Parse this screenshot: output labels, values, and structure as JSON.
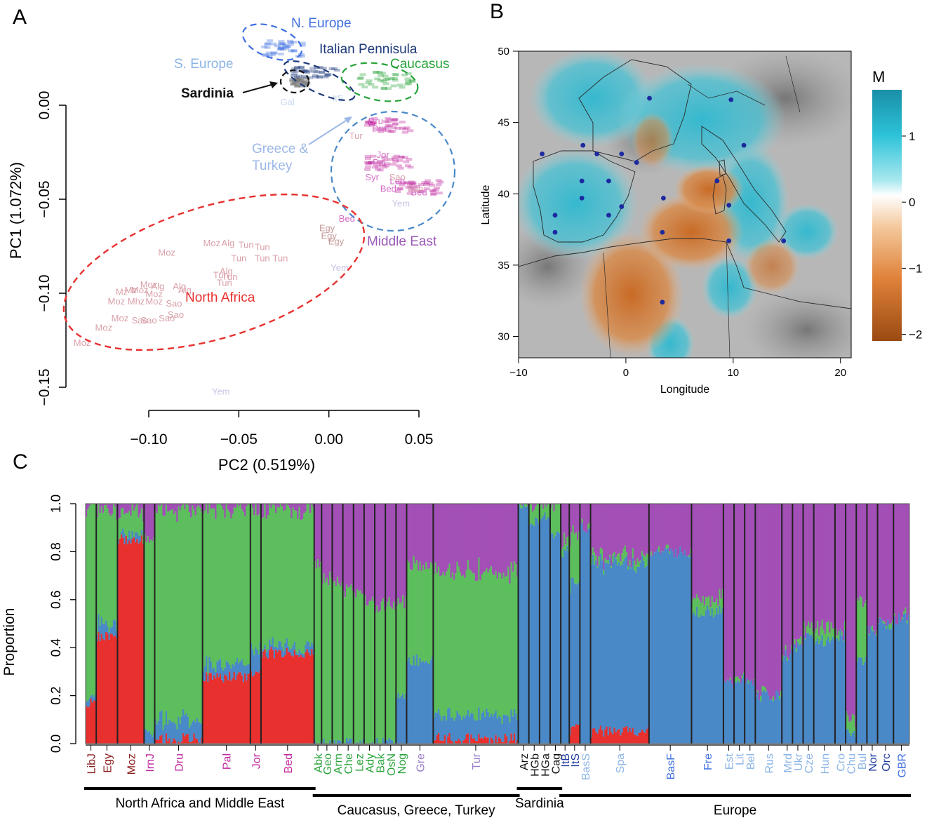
{
  "panel_labels": {
    "a": "A",
    "b": "B",
    "c": "C"
  },
  "colors": {
    "north_africa": "#e8302e",
    "blue_comp": "#4a89c8",
    "green_comp": "#5cbe5c",
    "purple_comp": "#a24fb6",
    "n_europe": "#3f6fe0",
    "italy": "#1e3a7a",
    "caucasus": "#27a33a",
    "middle_east": "#9b59b6",
    "s_europe": "#8ab4e6",
    "greece": "#9db8e6",
    "red_label": "#e8302e",
    "dark_red": "#8b1f1f",
    "magenta": "#c0269e"
  },
  "chart_data": [
    {
      "type": "scatter",
      "panel": "A",
      "xlabel": "PC2 (0.519%)",
      "ylabel": "PC1 (1.072%)",
      "xlim": [
        -0.14,
        0.05
      ],
      "ylim": [
        -0.15,
        0.02
      ],
      "xticks": [
        "−0.10",
        "−0.05",
        "0.00",
        "0.05"
      ],
      "yticks": [
        "0.00",
        "−0.05",
        "−0.10",
        "−0.15"
      ],
      "group_labels": [
        "N. Europe",
        "Italian Pennisula",
        "S. Europe",
        "Caucasus",
        "Sardinia",
        "Greece & Turkey",
        "Middle East",
        "North Africa"
      ],
      "point_labels": [
        {
          "t": "Moz",
          "x": -0.065,
          "y": -0.075
        },
        {
          "t": "Alg",
          "x": -0.056,
          "y": -0.075
        },
        {
          "t": "Tun",
          "x": -0.046,
          "y": -0.076
        },
        {
          "t": "Tun",
          "x": -0.037,
          "y": -0.077
        },
        {
          "t": "Moz",
          "x": -0.09,
          "y": -0.08
        },
        {
          "t": "Tun",
          "x": -0.05,
          "y": -0.083
        },
        {
          "t": "Tun",
          "x": -0.037,
          "y": -0.083
        },
        {
          "t": "Tun",
          "x": -0.027,
          "y": -0.083
        },
        {
          "t": "Alg",
          "x": -0.057,
          "y": -0.09
        },
        {
          "t": "Tun",
          "x": -0.06,
          "y": -0.092
        },
        {
          "t": "Tun",
          "x": -0.055,
          "y": -0.093
        },
        {
          "t": "Tun",
          "x": -0.058,
          "y": -0.096
        },
        {
          "t": "Moz",
          "x": -0.1,
          "y": -0.097
        },
        {
          "t": "Alg",
          "x": -0.095,
          "y": -0.098
        },
        {
          "t": "Alg",
          "x": -0.083,
          "y": -0.098
        },
        {
          "t": "Alg",
          "x": -0.08,
          "y": -0.1
        },
        {
          "t": "Mz",
          "x": -0.11,
          "y": -0.1
        },
        {
          "t": "Mz",
          "x": -0.115,
          "y": -0.101
        },
        {
          "t": "Moz",
          "x": -0.105,
          "y": -0.1
        },
        {
          "t": "Moz",
          "x": -0.097,
          "y": -0.102
        },
        {
          "t": "Moz",
          "x": -0.118,
          "y": -0.106
        },
        {
          "t": "Mhz",
          "x": -0.107,
          "y": -0.106
        },
        {
          "t": "Moz",
          "x": -0.097,
          "y": -0.106
        },
        {
          "t": "Sao",
          "x": -0.086,
          "y": -0.107
        },
        {
          "t": "Moz",
          "x": -0.116,
          "y": -0.115
        },
        {
          "t": "Sao",
          "x": -0.105,
          "y": -0.116
        },
        {
          "t": "Sao",
          "x": -0.1,
          "y": -0.116
        },
        {
          "t": "Sao",
          "x": -0.09,
          "y": -0.115
        },
        {
          "t": "Sao",
          "x": -0.085,
          "y": -0.113
        },
        {
          "t": "Moz",
          "x": -0.125,
          "y": -0.12
        },
        {
          "t": "Moz",
          "x": -0.137,
          "y": -0.128
        },
        {
          "t": "Yem",
          "x": 0.006,
          "y": -0.088
        },
        {
          "t": "Yem",
          "x": 0.04,
          "y": -0.054
        },
        {
          "t": "Yem",
          "x": -0.06,
          "y": -0.154
        },
        {
          "t": "Egy",
          "x": -0.001,
          "y": -0.067
        },
        {
          "t": "Egy",
          "x": 0.0,
          "y": -0.071
        },
        {
          "t": "Egy",
          "x": 0.004,
          "y": -0.074
        },
        {
          "t": "Bed",
          "x": 0.01,
          "y": -0.062
        },
        {
          "t": "Bed",
          "x": 0.033,
          "y": -0.046
        },
        {
          "t": "Bed",
          "x": 0.05,
          "y": -0.048
        },
        {
          "t": "Sao",
          "x": 0.038,
          "y": -0.04
        },
        {
          "t": "Sao",
          "x": 0.048,
          "y": -0.046
        },
        {
          "t": "Pal",
          "x": 0.028,
          "y": -0.032
        },
        {
          "t": "Jor",
          "x": 0.03,
          "y": -0.028
        },
        {
          "t": "Dru",
          "x": 0.026,
          "y": -0.01
        },
        {
          "t": "Dru",
          "x": 0.028,
          "y": -0.014
        },
        {
          "t": "Gal",
          "x": -0.023,
          "y": -0.0
        },
        {
          "t": "Tur",
          "x": 0.015,
          "y": -0.018
        },
        {
          "t": "Syr",
          "x": 0.024,
          "y": -0.04
        },
        {
          "t": "Leb",
          "x": 0.038,
          "y": -0.042
        },
        {
          "t": "ItS",
          "x": 0.005,
          "y": 0.002
        }
      ],
      "group_clusters": [
        {
          "group": "n_europe",
          "x": -0.027,
          "y": 0.031
        },
        {
          "group": "italy",
          "x": -0.008,
          "y": 0.018
        },
        {
          "group": "caucasus",
          "x": 0.03,
          "y": 0.014
        },
        {
          "group": "sardinia",
          "x": -0.018,
          "y": 0.013
        },
        {
          "group": "middle_east",
          "x": 0.032,
          "y": -0.01
        },
        {
          "group": "middle_east",
          "x": 0.032,
          "y": -0.03
        },
        {
          "group": "middle_east",
          "x": 0.048,
          "y": -0.043
        }
      ]
    },
    {
      "type": "heatmap",
      "panel": "B",
      "title": "M",
      "xlabel": "Longitude",
      "ylabel": "Latitude",
      "xticks": [
        "−10",
        "0",
        "10",
        "20"
      ],
      "yticks": [
        "30",
        "35",
        "40",
        "45",
        "50"
      ],
      "xlim": [
        -10,
        21
      ],
      "ylim": [
        28.5,
        50
      ],
      "colorbar_ticks": [
        "1",
        "0",
        "−1",
        "−2"
      ],
      "colorbar_range": [
        -2.1,
        1.7
      ],
      "sample_sites": [
        {
          "lon": 2.2,
          "lat": 46.7
        },
        {
          "lon": 9.8,
          "lat": 46.6
        },
        {
          "lon": -4.0,
          "lat": 43.4
        },
        {
          "lon": 11.0,
          "lat": 43.4
        },
        {
          "lon": -7.8,
          "lat": 42.8
        },
        {
          "lon": -2.7,
          "lat": 42.8
        },
        {
          "lon": -0.4,
          "lat": 42.8
        },
        {
          "lon": 1.0,
          "lat": 42.2
        },
        {
          "lon": -4.1,
          "lat": 40.9
        },
        {
          "lon": -1.6,
          "lat": 40.9
        },
        {
          "lon": 8.5,
          "lat": 40.9
        },
        {
          "lon": -4.1,
          "lat": 39.7
        },
        {
          "lon": 3.5,
          "lat": 39.7
        },
        {
          "lon": -0.4,
          "lat": 39.1
        },
        {
          "lon": 9.6,
          "lat": 39.2
        },
        {
          "lon": -6.6,
          "lat": 38.5
        },
        {
          "lon": -1.6,
          "lat": 38.5
        },
        {
          "lon": -6.6,
          "lat": 37.3
        },
        {
          "lon": 3.4,
          "lat": 37.3
        },
        {
          "lon": 9.6,
          "lat": 36.7
        },
        {
          "lon": 14.7,
          "lat": 36.7
        },
        {
          "lon": 3.4,
          "lat": 32.4
        }
      ]
    },
    {
      "type": "bar",
      "panel": "C",
      "stacked": true,
      "ylabel": "Proportion",
      "ylim": [
        0,
        1
      ],
      "yticks": [
        "0.0",
        "0.2",
        "0.4",
        "0.6",
        "0.8",
        "1.0"
      ],
      "component_order": [
        "red",
        "blue",
        "green",
        "purple"
      ],
      "populations": [
        {
          "name": "LibJ",
          "color": "#8b1f1f",
          "w": 1.0,
          "red": 0.17,
          "blue": 0.02,
          "green": 0.79
        },
        {
          "name": "Egy",
          "color": "#8b1f1f",
          "w": 2.0,
          "red": 0.45,
          "blue": 0.05,
          "green": 0.48
        },
        {
          "name": "Moz",
          "color": "#8b1f1f",
          "w": 2.5,
          "red": 0.85,
          "blue": 0.02,
          "green": 0.1
        },
        {
          "name": "IrnJ",
          "color": "#c0269e",
          "w": 1.0,
          "red": 0.0,
          "blue": 0.05,
          "green": 0.8
        },
        {
          "name": "Dru",
          "color": "#c0269e",
          "w": 4.5,
          "red": 0.02,
          "blue": 0.08,
          "green": 0.88
        },
        {
          "name": "Pal",
          "color": "#c0269e",
          "w": 4.5,
          "red": 0.28,
          "blue": 0.05,
          "green": 0.65
        },
        {
          "name": "Jor",
          "color": "#c0269e",
          "w": 1.0,
          "red": 0.3,
          "blue": 0.1,
          "green": 0.58
        },
        {
          "name": "Bed",
          "color": "#c0269e",
          "w": 5.0,
          "red": 0.38,
          "blue": 0.03,
          "green": 0.57
        },
        {
          "name": "Abk",
          "color": "#27a33a",
          "w": 0.7,
          "red": 0.0,
          "blue": 0.0,
          "green": 0.75
        },
        {
          "name": "Geo",
          "color": "#27a33a",
          "w": 1.0,
          "red": 0.0,
          "blue": 0.0,
          "green": 0.68
        },
        {
          "name": "Arm",
          "color": "#27a33a",
          "w": 1.0,
          "red": 0.0,
          "blue": 0.0,
          "green": 0.66
        },
        {
          "name": "Che",
          "color": "#27a33a",
          "w": 1.0,
          "red": 0.0,
          "blue": 0.0,
          "green": 0.63
        },
        {
          "name": "Lez",
          "color": "#27a33a",
          "w": 1.0,
          "red": 0.0,
          "blue": 0.0,
          "green": 0.62
        },
        {
          "name": "Ady",
          "color": "#27a33a",
          "w": 1.0,
          "red": 0.0,
          "blue": 0.0,
          "green": 0.6
        },
        {
          "name": "Bak",
          "color": "#27a33a",
          "w": 1.0,
          "red": 0.0,
          "blue": 0.0,
          "green": 0.57
        },
        {
          "name": "OsN",
          "color": "#27a33a",
          "w": 1.0,
          "red": 0.0,
          "blue": 0.0,
          "green": 0.57
        },
        {
          "name": "Nog",
          "color": "#27a33a",
          "w": 1.0,
          "red": 0.0,
          "blue": 0.2,
          "green": 0.4
        },
        {
          "name": "Gre",
          "color": "#9b80c8",
          "w": 2.5,
          "red": 0.0,
          "blue": 0.35,
          "green": 0.4
        },
        {
          "name": "Tur",
          "color": "#9b80c8",
          "w": 8.0,
          "red": 0.02,
          "blue": 0.1,
          "green": 0.6
        },
        {
          "name": "Arz",
          "color": "#111111",
          "w": 1.0,
          "red": 0.0,
          "blue": 1.0,
          "green": 0.0
        },
        {
          "name": "HGb",
          "color": "#111111",
          "w": 1.0,
          "red": 0.0,
          "blue": 0.93,
          "green": 0.07
        },
        {
          "name": "HGa",
          "color": "#111111",
          "w": 1.0,
          "red": 0.0,
          "blue": 0.95,
          "green": 0.05
        },
        {
          "name": "Cag",
          "color": "#111111",
          "w": 1.0,
          "red": 0.0,
          "blue": 0.88,
          "green": 0.12
        },
        {
          "name": "ItB",
          "color": "#1e3a9c",
          "w": 0.8,
          "red": 0.0,
          "blue": 0.8,
          "green": 0.05
        },
        {
          "name": "ItS",
          "color": "#1e3a9c",
          "w": 1.0,
          "red": 0.06,
          "blue": 0.6,
          "green": 0.2
        },
        {
          "name": "BasS",
          "color": "#8ab4e6",
          "w": 1.0,
          "red": 0.0,
          "blue": 0.9,
          "green": 0.0
        },
        {
          "name": "Spa",
          "color": "#8ab4e6",
          "w": 5.5,
          "red": 0.05,
          "blue": 0.7,
          "green": 0.03
        },
        {
          "name": "BasF",
          "color": "#3f6fe0",
          "w": 4.0,
          "red": 0.0,
          "blue": 0.8,
          "green": 0.0
        },
        {
          "name": "Fre",
          "color": "#3f6fe0",
          "w": 3.0,
          "red": 0.0,
          "blue": 0.55,
          "green": 0.06
        },
        {
          "name": "Est",
          "color": "#8ab4e6",
          "w": 1.0,
          "red": 0.0,
          "blue": 0.25,
          "green": 0.0
        },
        {
          "name": "Lit",
          "color": "#8ab4e6",
          "w": 1.0,
          "red": 0.0,
          "blue": 0.27,
          "green": 0.0
        },
        {
          "name": "Bel",
          "color": "#8ab4e6",
          "w": 1.0,
          "red": 0.0,
          "blue": 0.25,
          "green": 0.0
        },
        {
          "name": "Rus",
          "color": "#8ab4e6",
          "w": 2.5,
          "red": 0.0,
          "blue": 0.2,
          "green": 0.0
        },
        {
          "name": "Mrd",
          "color": "#8ab4e6",
          "w": 1.0,
          "red": 0.0,
          "blue": 0.37,
          "green": 0.0
        },
        {
          "name": "Ukr",
          "color": "#8ab4e6",
          "w": 1.0,
          "red": 0.0,
          "blue": 0.4,
          "green": 0.02
        },
        {
          "name": "Cze",
          "color": "#8ab4e6",
          "w": 1.0,
          "red": 0.0,
          "blue": 0.45,
          "green": 0.03
        },
        {
          "name": "Hun",
          "color": "#8ab4e6",
          "w": 2.0,
          "red": 0.0,
          "blue": 0.43,
          "green": 0.05
        },
        {
          "name": "Cro",
          "color": "#8ab4e6",
          "w": 1.0,
          "red": 0.0,
          "blue": 0.45,
          "green": 0.02
        },
        {
          "name": "Chu",
          "color": "#8ab4e6",
          "w": 1.0,
          "red": 0.0,
          "blue": 0.05,
          "green": 0.06
        },
        {
          "name": "Bul",
          "color": "#8ab4e6",
          "w": 1.0,
          "red": 0.0,
          "blue": 0.35,
          "green": 0.25
        },
        {
          "name": "Nor",
          "color": "#1e3a9c",
          "w": 1.0,
          "red": 0.0,
          "blue": 0.47,
          "green": 0.0
        },
        {
          "name": "Orc",
          "color": "#1e3a9c",
          "w": 1.5,
          "red": 0.0,
          "blue": 0.5,
          "green": 0.0
        },
        {
          "name": "GBR",
          "color": "#3f6fe0",
          "w": 1.5,
          "red": 0.0,
          "blue": 0.52,
          "green": 0.0
        }
      ],
      "regions": [
        {
          "name": "North Africa and Middle East",
          "from": 0,
          "to": 7
        },
        {
          "name": "Caucasus, Greece, Turkey",
          "from": 8,
          "to": 18
        },
        {
          "name": "Sardinia",
          "from": 19,
          "to": 22
        },
        {
          "name": "Europe",
          "from": 23,
          "to": 42
        }
      ]
    }
  ]
}
